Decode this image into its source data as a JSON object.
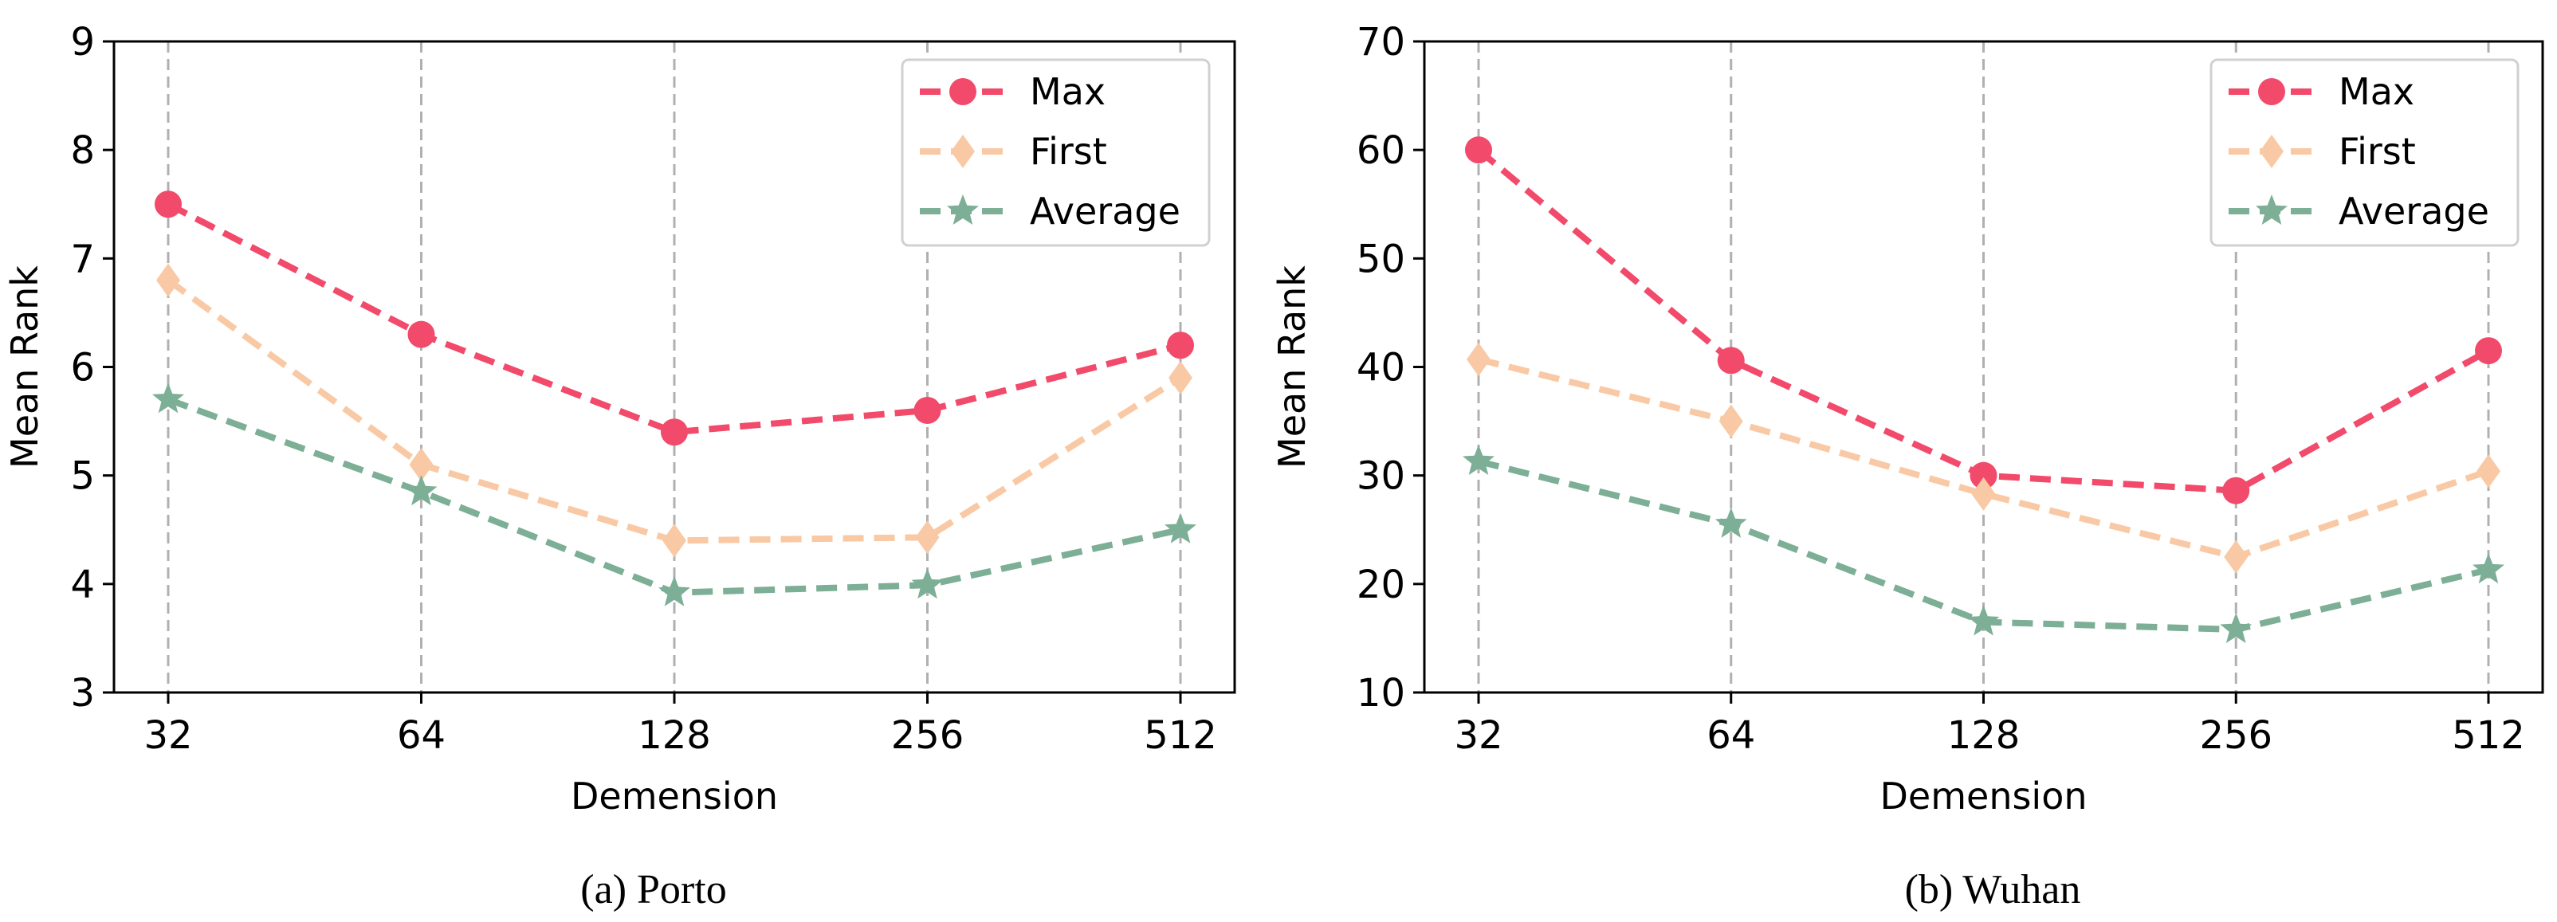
{
  "chart_data": [
    {
      "type": "line",
      "caption": "(a) Porto",
      "categories": [
        "32",
        "64",
        "128",
        "256",
        "512"
      ],
      "xlabel": "Demension",
      "ylabel": "Mean Rank",
      "ylim": [
        3,
        9
      ],
      "yticks": [
        "3",
        "4",
        "5",
        "6",
        "7",
        "8",
        "9"
      ],
      "grid": "vertical-dashed",
      "legend_position": "top-right",
      "series": [
        {
          "name": "Max",
          "marker": "circle",
          "color": "#F24A6B",
          "values": [
            7.5,
            6.3,
            5.4,
            5.6,
            6.2
          ]
        },
        {
          "name": "First",
          "marker": "diamond",
          "color": "#F8C9A4",
          "values": [
            6.8,
            5.1,
            4.4,
            4.43,
            5.9
          ]
        },
        {
          "name": "Average",
          "marker": "star",
          "color": "#7DAE96",
          "values": [
            5.7,
            4.85,
            3.92,
            3.99,
            4.5
          ]
        }
      ]
    },
    {
      "type": "line",
      "caption": "(b) Wuhan",
      "categories": [
        "32",
        "64",
        "128",
        "256",
        "512"
      ],
      "xlabel": "Demension",
      "ylabel": "Mean Rank",
      "ylim": [
        10,
        70
      ],
      "yticks": [
        "10",
        "20",
        "30",
        "40",
        "50",
        "60",
        "70"
      ],
      "grid": "vertical-dashed",
      "legend_position": "top-right",
      "series": [
        {
          "name": "Max",
          "marker": "circle",
          "color": "#F24A6B",
          "values": [
            60,
            40.6,
            30,
            28.6,
            41.5
          ]
        },
        {
          "name": "First",
          "marker": "diamond",
          "color": "#F8C9A4",
          "values": [
            40.7,
            35,
            28.3,
            22.5,
            30.4
          ]
        },
        {
          "name": "Average",
          "marker": "star",
          "color": "#7DAE96",
          "values": [
            31.3,
            25.5,
            16.5,
            15.8,
            21.3
          ]
        }
      ]
    }
  ]
}
